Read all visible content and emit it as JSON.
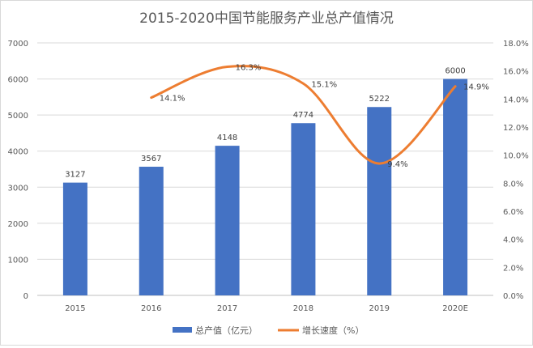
{
  "chart_data": {
    "type": "bar+line",
    "title": "2015-2020中国节能服务产业总产值情况",
    "categories": [
      "2015",
      "2016",
      "2017",
      "2018",
      "2019",
      "2020E"
    ],
    "series": [
      {
        "name": "总产值（亿元）",
        "type": "bar",
        "axis": "left",
        "color": "#4472C4",
        "values": [
          3127,
          3567,
          4148,
          4774,
          5222,
          6000
        ],
        "labels": [
          "3127",
          "3567",
          "4148",
          "4774",
          "5222",
          "6000"
        ]
      },
      {
        "name": "增长速度（%）",
        "type": "line",
        "axis": "right",
        "color": "#ED7D31",
        "smooth": true,
        "values": [
          null,
          14.1,
          16.3,
          15.1,
          9.4,
          14.9
        ],
        "labels": [
          null,
          "14.1%",
          "16.3%",
          "15.1%",
          "9.4%",
          "14.9%"
        ]
      }
    ],
    "left_axis": {
      "range": [
        0,
        7000
      ],
      "ticks": [
        "0",
        "1000",
        "2000",
        "3000",
        "4000",
        "5000",
        "6000",
        "7000"
      ]
    },
    "right_axis": {
      "range": [
        0,
        18
      ],
      "ticks": [
        "0.0%",
        "2.0%",
        "4.0%",
        "6.0%",
        "8.0%",
        "10.0%",
        "12.0%",
        "14.0%",
        "16.0%",
        "18.0%"
      ]
    },
    "grid": true,
    "legend": "bottom"
  }
}
